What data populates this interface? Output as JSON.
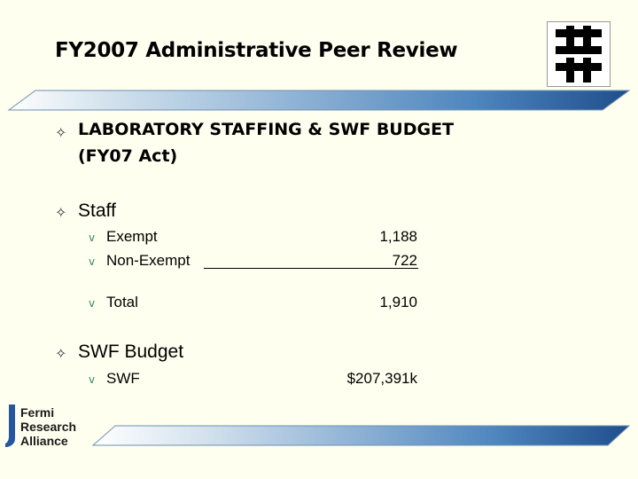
{
  "slide": {
    "title": "FY2007 Administrative Peer Review",
    "section_heading_line1": "LABORATORY STAFFING & SWF BUDGET",
    "section_heading_line2": "(FY07 Act)",
    "staff_label": "Staff",
    "staff_items": [
      {
        "label": "Exempt",
        "value": "1,188"
      },
      {
        "label": "Non-Exempt",
        "value": "722"
      }
    ],
    "total": {
      "label": "Total",
      "value": "1,910"
    },
    "budget_label": "SWF Budget",
    "budget_items": [
      {
        "label": "SWF",
        "value": "$207,391k"
      }
    ]
  },
  "footer_logo": {
    "line1": "Fermi",
    "line2": "Research",
    "line3": "Alliance"
  },
  "bullets": {
    "level1": "✧",
    "level2": "v"
  },
  "icons": {
    "top_right_logo": "fermilab-logo-icon",
    "bottom_left_logo": "fermi-research-alliance-logo"
  },
  "colors": {
    "background": "#FFFFF0",
    "band_light": "#DCE8F0",
    "band_dark": "#1F4E8C",
    "check": "#2E8B57"
  }
}
